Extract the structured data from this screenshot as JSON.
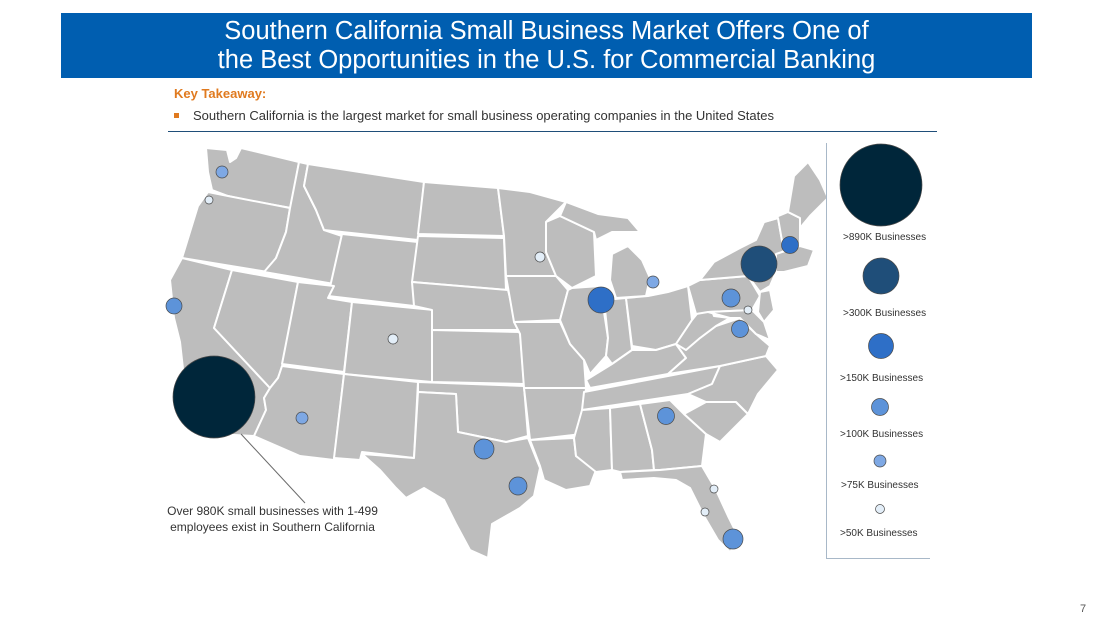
{
  "header": {
    "title_line1": "Southern California Small Business Market Offers One of",
    "title_line2": "the Best Opportunities in the U.S. for Commercial Banking"
  },
  "takeaway": {
    "label": "Key Takeaway:",
    "bullet": "Southern California is the largest market for small  business operating companies in the United States"
  },
  "legend": {
    "items": [
      {
        "label": ">890K Businesses",
        "color": "#00263A"
      },
      {
        "label": ">300K Businesses",
        "color": "#1F4E79"
      },
      {
        "label": ">150K Businesses",
        "color": "#2E6FC7"
      },
      {
        "label": ">100K Businesses",
        "color": "#5D93D9"
      },
      {
        "label": ">75K Businesses",
        "color": "#7EA8E4"
      },
      {
        "label": ">50K Businesses",
        "color": "#E3EEF8"
      }
    ]
  },
  "callout": {
    "line1": "Over 980K small businesses with 1-499",
    "line2": "employees exist in Southern California"
  },
  "page_number": "7"
}
